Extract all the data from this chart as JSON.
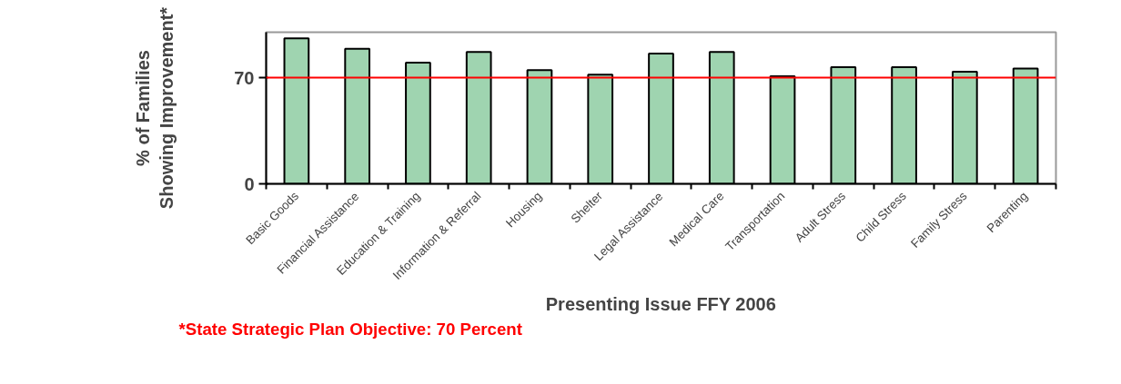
{
  "chart_data": {
    "type": "bar",
    "xlabel": "Presenting Issue FFY 2006",
    "ylabel": "% of Families Showing Improvement*",
    "categories": [
      "Basic Goods",
      "Financial Assistance",
      "Education & Training",
      "Information & Referral",
      "Housing",
      "Shelter",
      "Legal Assistance",
      "Medical Care",
      "Transportation",
      "Adult Stress",
      "Child Stress",
      "Family Stress",
      "Parenting"
    ],
    "values": [
      96,
      89,
      80,
      87,
      75,
      72,
      86,
      87,
      71,
      77,
      77,
      74,
      76
    ],
    "color": "#9fd4b0",
    "ylim": [
      0,
      100
    ],
    "yticks": [
      0,
      70
    ],
    "grid": false,
    "ref_lines": [
      {
        "axis": "y",
        "value": 70,
        "color": "#ff0000"
      }
    ],
    "annotations": [
      "*State Strategic Plan Objective: 70 Percent"
    ]
  }
}
